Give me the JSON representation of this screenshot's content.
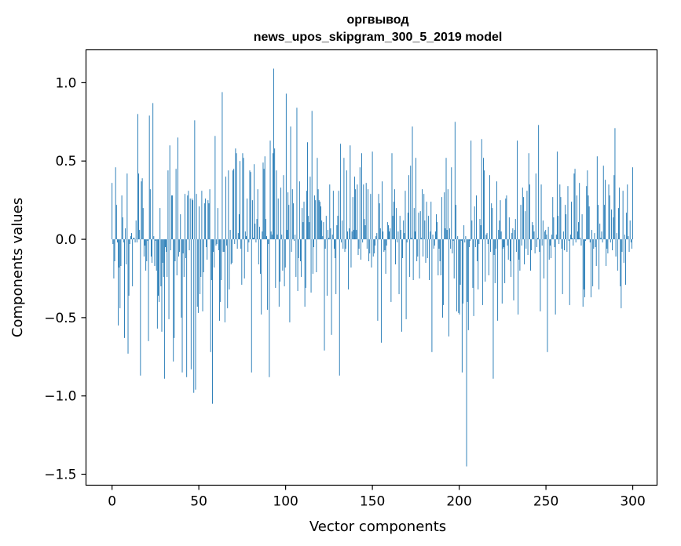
{
  "chart_data": {
    "type": "bar",
    "title": [
      "оргвывод",
      "news_upos_skipgram_300_5_2019 model"
    ],
    "xlabel": "Vector components",
    "ylabel": "Components values",
    "xlim": [
      -15,
      314
    ],
    "ylim": [
      -1.57,
      1.21
    ],
    "xticks": [
      {
        "value": 0,
        "label": "0"
      },
      {
        "value": 50,
        "label": "50"
      },
      {
        "value": 100,
        "label": "100"
      },
      {
        "value": 150,
        "label": "150"
      },
      {
        "value": 200,
        "label": "200"
      },
      {
        "value": 250,
        "label": "250"
      },
      {
        "value": 300,
        "label": "300"
      }
    ],
    "yticks": [
      {
        "value": 1.0,
        "label": "1.0"
      },
      {
        "value": 0.5,
        "label": "0.5"
      },
      {
        "value": 0.0,
        "label": "0.0"
      },
      {
        "value": -0.5,
        "label": "−0.5"
      },
      {
        "value": -1.0,
        "label": "−1.0"
      },
      {
        "value": -1.5,
        "label": "−1.5"
      }
    ],
    "bar_color": "#1f77b4",
    "series": [
      {
        "name": "components",
        "values": [
          0.36,
          -0.03,
          -0.25,
          -0.14,
          0.46,
          0.22,
          -0.02,
          -0.55,
          -0.18,
          -0.44,
          -0.17,
          0.28,
          0.14,
          -0.02,
          -0.63,
          0.07,
          -0.16,
          0.42,
          -0.73,
          -0.36,
          -0.03,
          0.02,
          0.04,
          -0.3,
          0.01,
          0.01,
          -0.02,
          0.12,
          -0.02,
          0.8,
          0.42,
          0.06,
          -0.87,
          0.37,
          0.39,
          0.2,
          -0.11,
          -0.04,
          -0.2,
          -0.14,
          -0.01,
          -0.65,
          0.79,
          0.32,
          -0.11,
          -0.15,
          0.87,
          0.02,
          -0.17,
          -0.01,
          -0.2,
          -0.57,
          -0.36,
          -0.4,
          0.2,
          -0.3,
          -0.59,
          -0.15,
          -0.24,
          -0.89,
          -0.05,
          -0.08,
          -0.24,
          0.44,
          -0.51,
          0.6,
          -0.07,
          0.28,
          0.28,
          -0.78,
          -0.63,
          -0.14,
          0.45,
          -0.23,
          0.65,
          -0.11,
          -0.08,
          0.16,
          -0.5,
          -0.85,
          -0.09,
          -0.24,
          0.29,
          -0.12,
          -0.88,
          0.28,
          0.31,
          -0.07,
          0.26,
          -0.83,
          0.26,
          0.25,
          -0.98,
          0.76,
          -0.96,
          0.29,
          -0.43,
          -0.47,
          0.21,
          -0.35,
          -0.24,
          0.31,
          -0.46,
          -0.21,
          0.23,
          0.26,
          -0.05,
          -0.13,
          0.25,
          0.23,
          0.32,
          -0.72,
          -0.26,
          -1.05,
          -0.08,
          -0.18,
          0.66,
          -0.04,
          -0.03,
          0.2,
          -0.07,
          -0.52,
          -0.4,
          -0.26,
          0.94,
          -0.08,
          -0.08,
          -0.53,
          0.4,
          -0.04,
          -0.44,
          0.44,
          -0.32,
          0.06,
          -0.16,
          -0.15,
          0.44,
          0.45,
          -0.03,
          0.58,
          0.55,
          -0.06,
          0.04,
          0.16,
          0.5,
          -0.06,
          -0.29,
          0.55,
          0.52,
          -0.25,
          0.05,
          0.02,
          0.26,
          -0.08,
          -0.02,
          0.44,
          0.43,
          -0.85,
          0.25,
          0.01,
          0.48,
          0.1,
          -0.02,
          0.13,
          0.32,
          -0.16,
          0.08,
          -0.22,
          -0.48,
          0.05,
          0.49,
          0.45,
          0.53,
          0.13,
          0.02,
          -0.45,
          -0.03,
          -0.88,
          0.63,
          0.05,
          0.03,
          0.55,
          1.09,
          0.58,
          -0.31,
          0.44,
          0.03,
          0.26,
          -0.43,
          -0.27,
          0.33,
          0.03,
          -0.2,
          0.41,
          -0.3,
          -0.18,
          0.93,
          0.06,
          0.3,
          0.22,
          -0.53,
          0.72,
          -0.08,
          0.32,
          0.23,
          -0.01,
          0.03,
          -0.24,
          0.84,
          -0.33,
          -0.12,
          0.37,
          -0.14,
          -0.24,
          0.2,
          0.11,
          0.24,
          -0.43,
          -0.31,
          0.31,
          0.62,
          0.15,
          0.11,
          0.4,
          -0.34,
          0.82,
          -0.22,
          -0.05,
          0.28,
          0.25,
          -0.21,
          0.52,
          0.32,
          0.25,
          0.24,
          0.21,
          0.12,
          0.02,
          0.11,
          -0.71,
          -0.06,
          0.15,
          -0.36,
          0.06,
          0.01,
          0.35,
          0.07,
          -0.61,
          0.03,
          0.31,
          -0.06,
          -0.12,
          -0.35,
          0.09,
          0.15,
          0.31,
          -0.87,
          0.61,
          -0.02,
          0.12,
          -0.06,
          0.52,
          -0.08,
          -0.06,
          0.44,
          0.05,
          -0.32,
          0.07,
          0.6,
          -0.18,
          0.05,
          0.27,
          0.06,
          0.4,
          0.32,
          0.06,
          0.35,
          -0.1,
          -0.06,
          0.46,
          -0.13,
          0.55,
          -0.02,
          0.35,
          0.13,
          0.09,
          0.36,
          -0.06,
          0.32,
          -0.14,
          -0.09,
          0.29,
          -0.18,
          0.56,
          -0.11,
          -0.09,
          -0.04,
          0.02,
          0.04,
          -0.52,
          0.29,
          0.23,
          0.07,
          -0.66,
          0.37,
          0.05,
          -0.08,
          -0.07,
          -0.22,
          -0.04,
          0.11,
          0.09,
          0.05,
          0.07,
          -0.4,
          0.55,
          0.15,
          0.24,
          0.32,
          -0.16,
          0.2,
          -0.02,
          0.05,
          -0.35,
          0.15,
          0.06,
          -0.59,
          -0.12,
          0.12,
          0.04,
          0.31,
          -0.51,
          -0.02,
          0.17,
          0.41,
          -0.24,
          0.47,
          0.01,
          0.72,
          -0.26,
          0.2,
          0.05,
          0.52,
          -0.14,
          -0.11,
          0.17,
          -0.25,
          0.18,
          0.01,
          0.32,
          -0.11,
          0.29,
          0.12,
          -0.15,
          0.24,
          -0.12,
          0.15,
          -0.26,
          0.05,
          0.24,
          -0.72,
          0.03,
          -0.06,
          -0.04,
          0.05,
          0.16,
          0.11,
          -0.23,
          -0.06,
          -0.14,
          -0.23,
          0.27,
          -0.5,
          -0.42,
          0.3,
          0.07,
          0.52,
          0.06,
          0.32,
          -0.62,
          0.07,
          -0.06,
          0.46,
          -0.09,
          -0.01,
          -0.25,
          0.75,
          0.22,
          -0.46,
          0.02,
          -0.47,
          -0.48,
          -0.29,
          -0.01,
          -0.85,
          -0.41,
          0.09,
          -0.02,
          0.02,
          -1.45,
          -0.4,
          -0.58,
          -0.05,
          -0.01,
          0.63,
          0.12,
          -0.31,
          -0.49,
          0.21,
          -0.05,
          0.28,
          -0.14,
          -0.32,
          -0.03,
          0.13,
          0.09,
          0.64,
          -0.42,
          0.52,
          0.44,
          -0.27,
          0.03,
          0.04,
          -0.03,
          -0.23,
          0.41,
          -0.08,
          0.23,
          0.2,
          -0.89,
          -0.1,
          -0.28,
          -0.06,
          0.37,
          -0.52,
          0.06,
          0.12,
          0.25,
          0.05,
          -0.41,
          -0.06,
          -0.05,
          -0.28,
          0.26,
          0.28,
          -0.04,
          -0.13,
          0.14,
          -0.14,
          -0.24,
          0.04,
          0.07,
          -0.39,
          0.06,
          0.13,
          -0.08,
          0.63,
          -0.48,
          -0.13,
          -0.2,
          0.22,
          -0.04,
          0.33,
          0.27,
          -0.16,
          0.18,
          -0.06,
          0.31,
          -0.1,
          0.55,
          0.35,
          -0.2,
          -0.07,
          0.11,
          0.09,
          0.05,
          -0.09,
          0.42,
          -0.05,
          0.01,
          0.73,
          -0.08,
          -0.46,
          0.35,
          -0.04,
          0.12,
          -0.25,
          0.05,
          0.06,
          0.03,
          -0.72,
          0.08,
          -0.13,
          -0.04,
          -0.12,
          0.03,
          0.27,
          0.14,
          -0.05,
          -0.48,
          0.03,
          0.56,
          0.15,
          -0.03,
          0.35,
          0.27,
          -0.06,
          -0.35,
          0.05,
          -0.07,
          0.22,
          0.16,
          -0.08,
          0.34,
          -0.01,
          -0.42,
          0.03,
          0.24,
          0.01,
          -0.04,
          0.42,
          0.45,
          -0.02,
          0.28,
          0.05,
          0.11,
          0.36,
          0.01,
          -0.04,
          0.16,
          -0.43,
          -0.32,
          -0.37,
          -0.01,
          0.34,
          0.44,
          0.28,
          0.21,
          -0.02,
          -0.37,
          0.06,
          -0.3,
          -0.06,
          0.04,
          -0.05,
          -0.17,
          0.53,
          0.22,
          -0.32,
          0.1,
          0.01,
          0.05,
          -0.02,
          0.47,
          0.22,
          0.38,
          -0.17,
          -0.06,
          -0.09,
          0.35,
          0.28,
          -0.02,
          0.19,
          -0.07,
          0.14,
          0.41,
          0.71,
          -0.11,
          0.04,
          -0.2,
          0.2,
          0.33,
          -0.3,
          -0.44,
          -0.08,
          0.31,
          -0.15,
          0.03,
          -0.29,
          0.17,
          0.35,
          0.02,
          -0.08,
          0.12,
          -0.02,
          -0.06,
          0.46
        ]
      }
    ]
  }
}
